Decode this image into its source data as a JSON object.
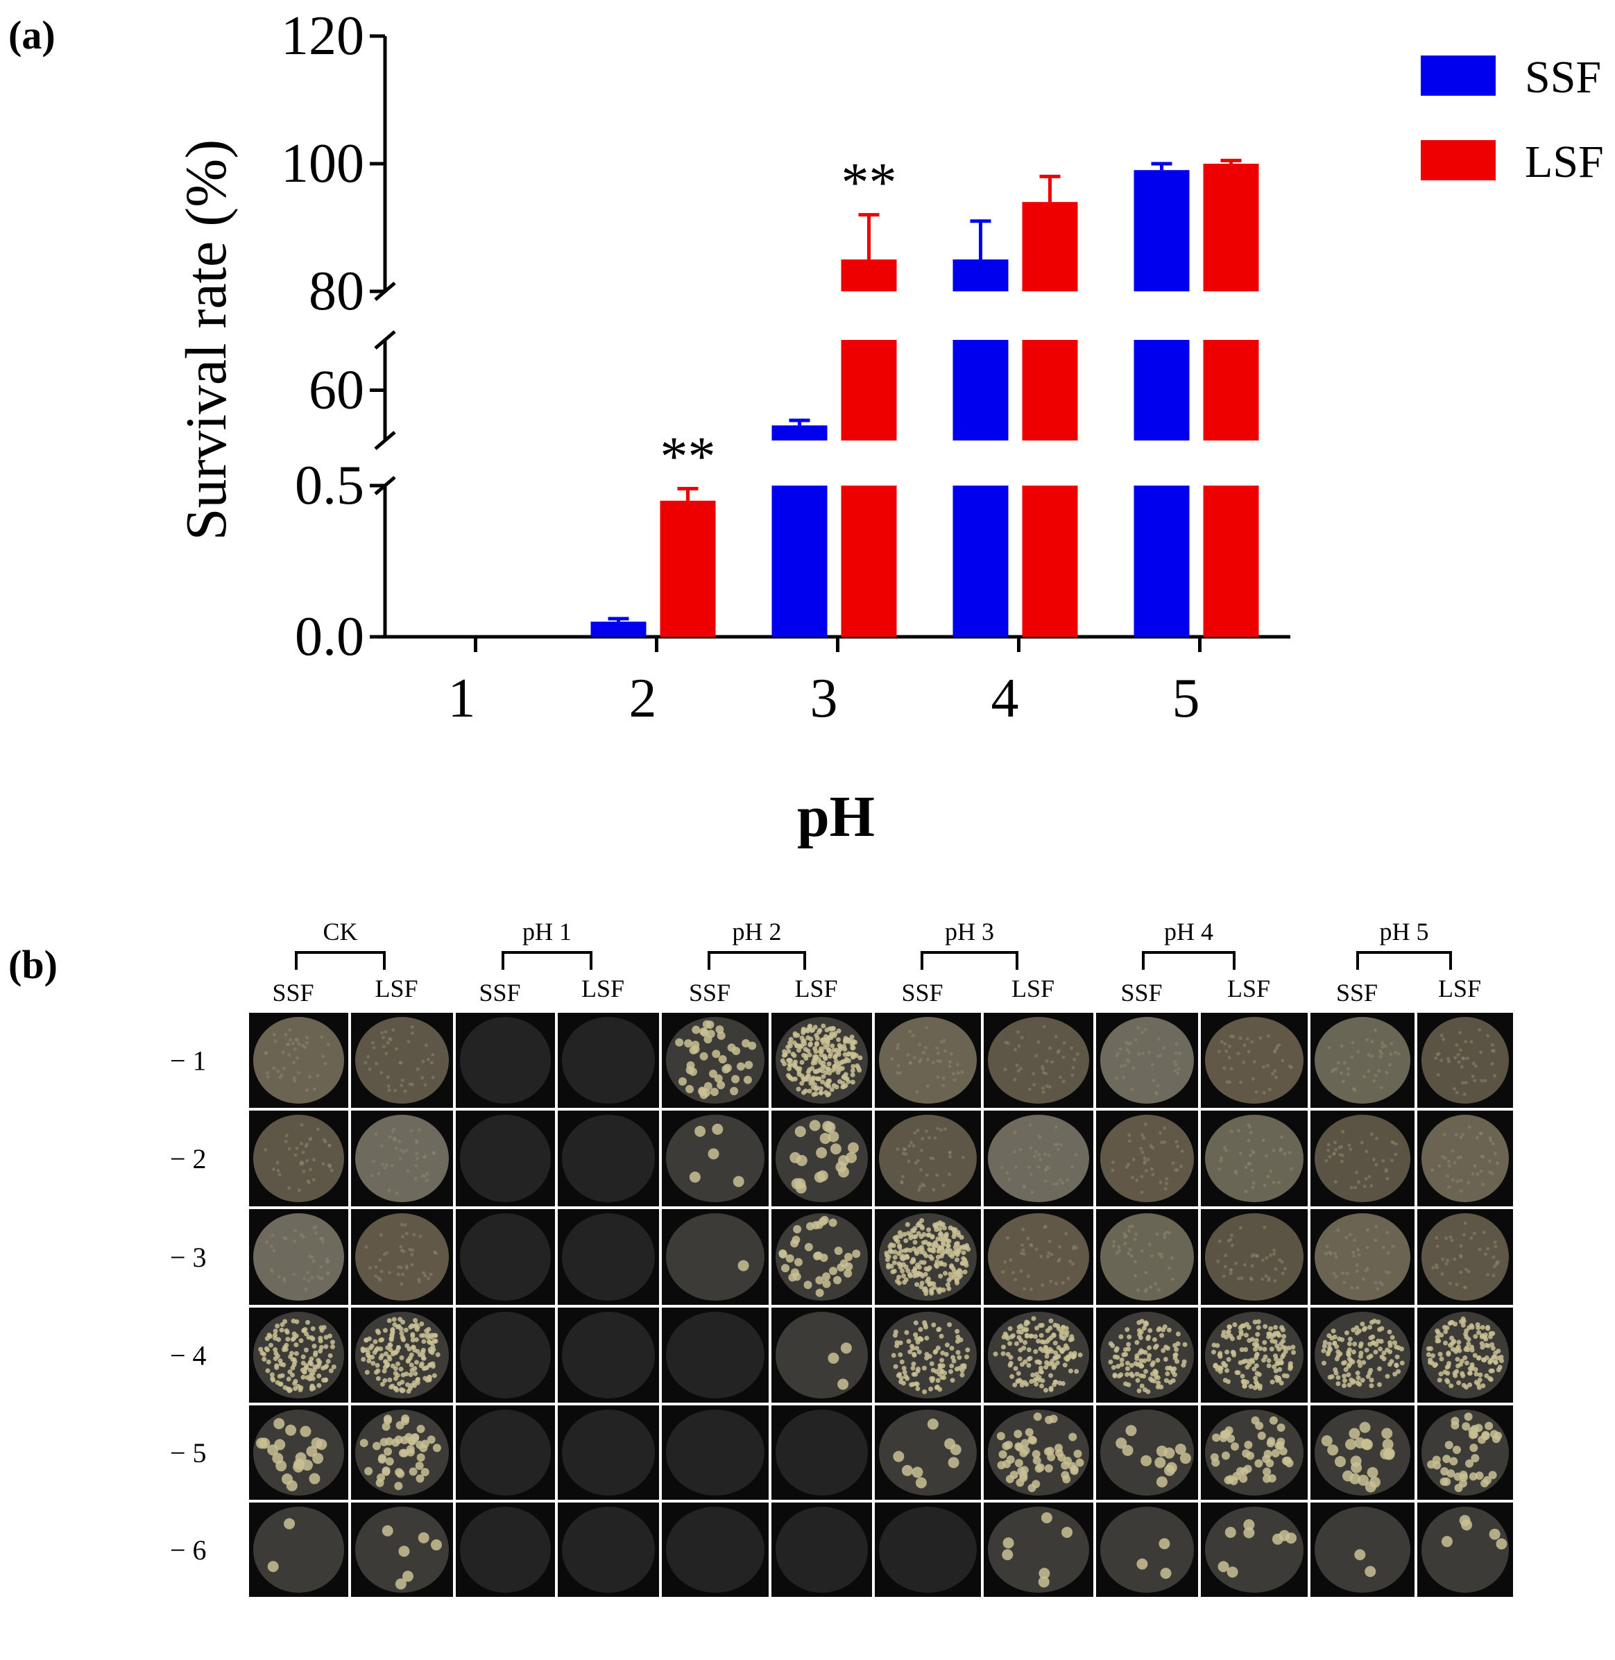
{
  "panel_a_label": "(a)",
  "panel_b_label": "(b)",
  "chart_data": {
    "type": "bar",
    "title": "",
    "xlabel": "pH",
    "ylabel": "Survival rate (%)",
    "categories": [
      "1",
      "2",
      "3",
      "4",
      "5"
    ],
    "series": [
      {
        "name": "SSF",
        "color": "#0000ee",
        "values": [
          0.0,
          0.05,
          53.0,
          85.0,
          99.0
        ],
        "errors": [
          0,
          0.01,
          1.0,
          6.0,
          1.0
        ]
      },
      {
        "name": "LSF",
        "color": "#ee0000",
        "values": [
          0.0,
          0.45,
          85.0,
          94.0,
          100.0
        ],
        "errors": [
          0,
          0.04,
          7.0,
          4.0,
          0.5
        ]
      }
    ],
    "y_segments": [
      {
        "range": [
          0.0,
          0.5
        ],
        "ticks": [
          "0.0",
          "0.5"
        ]
      },
      {
        "range": [
          50,
          70
        ],
        "ticks": [
          "60"
        ]
      },
      {
        "range": [
          80,
          120
        ],
        "ticks": [
          "80",
          "100",
          "120"
        ]
      }
    ],
    "significance": [
      {
        "category": "2",
        "label": "**"
      },
      {
        "category": "3",
        "label": "**"
      }
    ],
    "legend_position": "top-right"
  },
  "plate_panel": {
    "groups": [
      "CK",
      "pH 1",
      "pH 2",
      "pH 3",
      "pH 4",
      "pH 5"
    ],
    "subcolumns": [
      "SSF",
      "LSF"
    ],
    "row_labels": [
      "− 1",
      "− 2",
      "− 3",
      "− 4",
      "− 5",
      "− 6"
    ],
    "colonies": [
      [
        350,
        350,
        0,
        0,
        42,
        250,
        350,
        350,
        350,
        350,
        350,
        350
      ],
      [
        350,
        350,
        0,
        0,
        5,
        20,
        350,
        350,
        350,
        350,
        350,
        350
      ],
      [
        300,
        350,
        0,
        0,
        1,
        35,
        250,
        350,
        350,
        350,
        350,
        350
      ],
      [
        140,
        180,
        0,
        0,
        0,
        3,
        110,
        160,
        120,
        150,
        120,
        140
      ],
      [
        20,
        45,
        0,
        0,
        0,
        0,
        8,
        50,
        12,
        45,
        22,
        40
      ],
      [
        2,
        6,
        0,
        0,
        0,
        0,
        0,
        6,
        3,
        8,
        2,
        5
      ]
    ]
  }
}
